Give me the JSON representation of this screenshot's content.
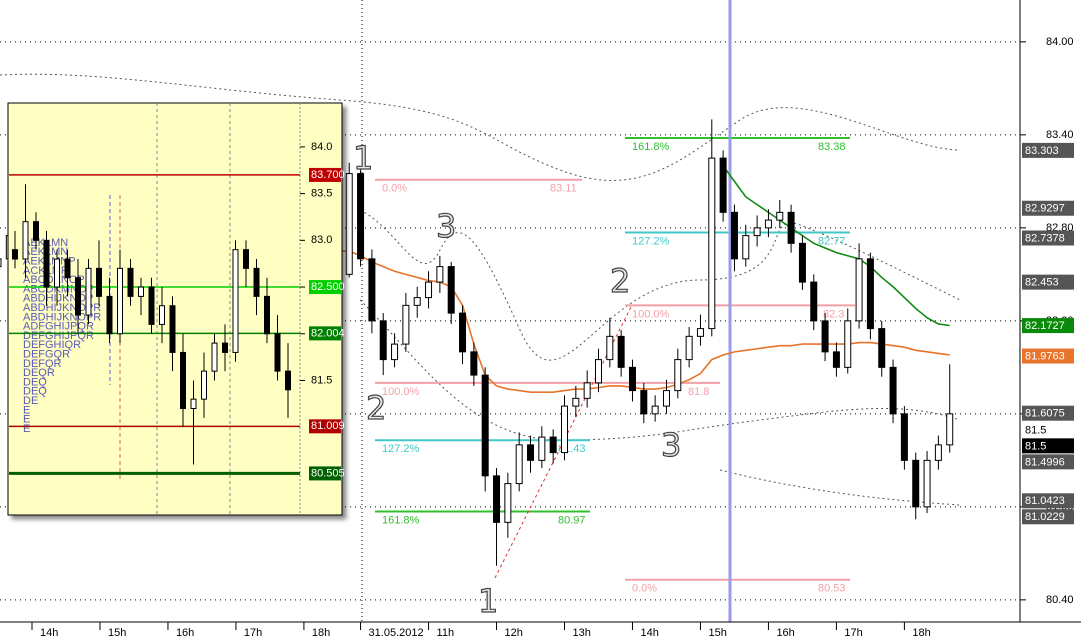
{
  "chart_data": [
    {
      "type": "candlestick",
      "categories": [
        null,
        null,
        null,
        "14h",
        null,
        null,
        null,
        null,
        null,
        "15h",
        null,
        null,
        null,
        null,
        null,
        "16h",
        null,
        null,
        null,
        null,
        null,
        "17h",
        null,
        null,
        null,
        null,
        null,
        "18h",
        null,
        null,
        null,
        null,
        "31.05.2012",
        null,
        null,
        null,
        null,
        null,
        "11h",
        null,
        null,
        null,
        null,
        null,
        "12h",
        null,
        null,
        null,
        null,
        null,
        "13h",
        null,
        null,
        null,
        null,
        null,
        "14h",
        null,
        null,
        null,
        null,
        null,
        "15h",
        null,
        null,
        null,
        null,
        null,
        "16h",
        null,
        null,
        null,
        null,
        null,
        "17h",
        null,
        null,
        null,
        null,
        null,
        "18h",
        null,
        null,
        null,
        null
      ],
      "candles": [
        [
          82.55,
          82.68,
          82.48,
          82.6
        ],
        [
          82.6,
          82.82,
          82.55,
          82.75
        ],
        [
          82.75,
          82.8,
          82.62,
          82.7
        ],
        [
          82.7,
          82.92,
          82.66,
          82.85
        ],
        [
          82.85,
          82.9,
          82.72,
          82.8
        ],
        [
          82.8,
          82.84,
          82.58,
          82.65
        ],
        [
          82.65,
          82.78,
          82.6,
          82.7
        ],
        [
          82.7,
          82.74,
          82.48,
          82.55
        ],
        [
          82.55,
          82.68,
          82.5,
          82.6
        ],
        [
          82.6,
          82.82,
          82.56,
          82.75
        ],
        [
          82.75,
          82.98,
          82.7,
          82.9
        ],
        [
          82.9,
          82.94,
          82.74,
          82.8
        ],
        [
          82.8,
          82.85,
          82.64,
          82.7
        ],
        [
          82.7,
          82.76,
          82.52,
          82.6
        ],
        [
          82.6,
          82.64,
          82.38,
          82.45
        ],
        [
          82.45,
          82.62,
          82.4,
          82.55
        ],
        [
          82.55,
          82.78,
          82.5,
          82.7
        ],
        [
          82.7,
          82.75,
          82.58,
          82.65
        ],
        [
          82.65,
          82.88,
          82.6,
          82.8
        ],
        [
          82.8,
          83.05,
          82.75,
          82.95
        ],
        [
          82.95,
          83.0,
          82.78,
          82.85
        ],
        [
          82.85,
          82.9,
          82.62,
          82.7
        ],
        [
          82.7,
          82.75,
          82.52,
          82.6
        ],
        [
          82.6,
          82.66,
          82.42,
          82.5
        ],
        [
          82.5,
          82.62,
          82.45,
          82.55
        ],
        [
          82.55,
          82.72,
          82.5,
          82.65
        ],
        [
          82.65,
          82.7,
          82.52,
          82.6
        ],
        [
          82.6,
          82.64,
          82.38,
          82.45
        ],
        [
          82.45,
          82.5,
          82.32,
          82.4
        ],
        [
          82.4,
          82.52,
          82.35,
          82.45
        ],
        [
          82.45,
          82.58,
          82.4,
          82.5
        ],
        [
          82.5,
          83.22,
          82.48,
          83.15
        ],
        [
          83.15,
          83.18,
          82.55,
          82.6
        ],
        [
          82.6,
          82.66,
          82.12,
          82.2
        ],
        [
          82.2,
          82.25,
          81.85,
          81.95
        ],
        [
          81.95,
          82.12,
          81.9,
          82.05
        ],
        [
          82.05,
          82.38,
          82.0,
          82.3
        ],
        [
          82.3,
          82.42,
          82.22,
          82.35
        ],
        [
          82.35,
          82.52,
          82.28,
          82.45
        ],
        [
          82.45,
          82.62,
          82.38,
          82.55
        ],
        [
          82.55,
          82.58,
          82.18,
          82.25
        ],
        [
          82.25,
          82.3,
          81.92,
          82.0
        ],
        [
          82.0,
          82.06,
          81.78,
          81.85
        ],
        [
          81.85,
          81.9,
          81.1,
          81.2
        ],
        [
          81.2,
          81.25,
          80.62,
          80.9
        ],
        [
          80.9,
          81.22,
          80.8,
          81.15
        ],
        [
          81.15,
          81.48,
          81.1,
          81.4
        ],
        [
          81.4,
          81.46,
          81.22,
          81.3
        ],
        [
          81.3,
          81.52,
          81.25,
          81.45
        ],
        [
          81.45,
          81.5,
          81.28,
          81.35
        ],
        [
          81.35,
          81.72,
          81.3,
          81.65
        ],
        [
          81.65,
          81.78,
          81.58,
          81.7
        ],
        [
          81.7,
          81.88,
          81.64,
          81.8
        ],
        [
          81.8,
          82.02,
          81.74,
          81.95
        ],
        [
          81.95,
          82.22,
          81.9,
          82.1
        ],
        [
          82.1,
          82.14,
          81.84,
          81.9
        ],
        [
          81.9,
          81.95,
          81.68,
          81.75
        ],
        [
          81.75,
          81.8,
          81.54,
          81.6
        ],
        [
          81.6,
          81.72,
          81.55,
          81.65
        ],
        [
          81.65,
          81.82,
          81.6,
          81.75
        ],
        [
          81.75,
          82.02,
          81.7,
          81.95
        ],
        [
          81.95,
          82.16,
          81.9,
          82.1
        ],
        [
          82.1,
          82.24,
          82.04,
          82.15
        ],
        [
          82.15,
          83.5,
          82.1,
          83.25
        ],
        [
          83.25,
          83.3,
          82.84,
          82.9
        ],
        [
          82.9,
          82.95,
          82.52,
          82.6
        ],
        [
          82.6,
          82.82,
          82.55,
          82.75
        ],
        [
          82.75,
          82.88,
          82.68,
          82.8
        ],
        [
          82.8,
          82.92,
          82.74,
          82.85
        ],
        [
          82.85,
          82.98,
          82.8,
          82.9
        ],
        [
          82.9,
          82.95,
          82.64,
          82.7
        ],
        [
          82.7,
          82.75,
          82.4,
          82.45
        ],
        [
          82.45,
          82.5,
          82.14,
          82.2
        ],
        [
          82.2,
          82.25,
          81.94,
          82.0
        ],
        [
          82.0,
          82.06,
          81.84,
          81.9
        ],
        [
          81.9,
          82.28,
          81.86,
          82.2
        ],
        [
          82.2,
          82.7,
          82.15,
          82.6
        ],
        [
          82.6,
          82.64,
          82.08,
          82.15
        ],
        [
          82.15,
          82.2,
          81.84,
          81.9
        ],
        [
          81.9,
          81.95,
          81.54,
          81.6
        ],
        [
          81.6,
          81.65,
          81.24,
          81.3
        ],
        [
          81.3,
          81.35,
          80.92,
          81.0
        ],
        [
          81.0,
          81.36,
          80.96,
          81.3
        ],
        [
          81.3,
          81.46,
          81.24,
          81.4
        ],
        [
          81.4,
          81.92,
          81.35,
          81.6
        ]
      ],
      "up_color": "#ffffff",
      "down_color": "#000000",
      "series": [
        {
          "color": "#e8742c",
          "values": [
            null,
            null,
            null,
            null,
            null,
            null,
            null,
            null,
            null,
            null,
            null,
            null,
            null,
            null,
            null,
            null,
            null,
            null,
            null,
            null,
            null,
            null,
            null,
            null,
            null,
            null,
            null,
            null,
            null,
            null,
            82.65,
            82.65,
            82.62,
            82.58,
            82.55,
            82.52,
            82.5,
            82.48,
            82.46,
            82.45,
            82.42,
            82.3,
            82.05,
            81.85,
            81.78,
            81.76,
            81.75,
            81.74,
            81.74,
            81.74,
            81.75,
            81.76,
            81.76,
            81.77,
            81.78,
            81.78,
            81.77,
            81.76,
            81.76,
            81.77,
            81.79,
            81.82,
            81.86,
            81.95,
            81.98,
            82.0,
            82.01,
            82.02,
            82.03,
            82.04,
            82.04,
            82.05,
            82.05,
            82.05,
            82.05,
            82.05,
            82.06,
            82.06,
            82.05,
            82.04,
            82.03,
            82.01,
            82.0,
            81.99,
            81.98
          ]
        },
        {
          "color": "#108a10",
          "values": [
            null,
            null,
            null,
            null,
            null,
            null,
            null,
            null,
            null,
            null,
            null,
            null,
            null,
            null,
            null,
            null,
            null,
            null,
            null,
            null,
            null,
            null,
            null,
            null,
            null,
            null,
            null,
            null,
            null,
            null,
            null,
            null,
            null,
            null,
            null,
            null,
            null,
            null,
            null,
            null,
            null,
            null,
            null,
            null,
            null,
            null,
            null,
            null,
            null,
            null,
            null,
            null,
            null,
            null,
            null,
            null,
            null,
            null,
            null,
            null,
            null,
            null,
            null,
            null,
            83.2,
            83.1,
            83.0,
            82.95,
            82.9,
            82.85,
            82.8,
            82.75,
            82.7,
            82.67,
            82.64,
            82.62,
            82.6,
            82.55,
            82.48,
            82.42,
            82.35,
            82.28,
            82.22,
            82.18,
            82.17
          ]
        }
      ],
      "ylim": [
        80.27,
        84.27
      ],
      "yticks": [
        {
          "value": 80.4,
          "label": "80.40"
        },
        {
          "value": 81,
          "label": "81.00"
        },
        {
          "value": 81.6,
          "label": "81.60"
        },
        {
          "value": 82.2,
          "label": "82.20"
        },
        {
          "value": 82.8,
          "label": "82.80"
        },
        {
          "value": 83.4,
          "label": "83.40"
        },
        {
          "value": 84,
          "label": "84.00"
        }
      ],
      "grid": true,
      "fib_levels": [
        {
          "label": "0.0%",
          "value": 83.11,
          "color": "#f2a0a8"
        },
        {
          "label": "100.0%",
          "value": 81.8,
          "color": "#f2a0a8"
        },
        {
          "label": "127.2%",
          "value": 81.43,
          "color": "#40c8c8"
        },
        {
          "label": "161.8%",
          "value": 80.97,
          "color": "#30c030"
        },
        {
          "label": "161.8%",
          "value": 83.38,
          "color": "#30c030"
        },
        {
          "label": "127.2%",
          "value": 82.77,
          "color": "#40c8c8"
        },
        {
          "label": "100.0%",
          "value": 82.3,
          "color": "#f2a0a8"
        },
        {
          "label": "0.0%",
          "value": 80.53,
          "color": "#f2a0a8"
        }
      ],
      "waves": [
        "1",
        "2",
        "3",
        "2",
        "3",
        "1"
      ],
      "price_labels": [
        {
          "value": 83.303,
          "color": "#555555",
          "text_color": "#ffffff"
        },
        {
          "value": 82.9297,
          "color": "#555555",
          "text_color": "#ffffff"
        },
        {
          "value": 82.7378,
          "color": "#555555",
          "text_color": "#ffffff"
        },
        {
          "value": 82.453,
          "color": "#555555",
          "text_color": "#ffffff"
        },
        {
          "value": 82.1727,
          "color": "#0a8a0a",
          "text_color": "#ffffff"
        },
        {
          "value": 81.9763,
          "color": "#e8742c",
          "text_color": "#ffffff"
        },
        {
          "value": 81.6075,
          "color": "#555555",
          "text_color": "#ffffff"
        },
        {
          "value": 81.5,
          "color": "#ffffff",
          "text_color": "#000000"
        },
        {
          "value": 81.5,
          "color": "#000000",
          "text_color": "#ffffff"
        },
        {
          "value": 81.4996,
          "color": "#555555",
          "text_color": "#ffffff"
        },
        {
          "value": 81.0423,
          "color": "#555555",
          "text_color": "#ffffff"
        },
        {
          "value": 81.0229,
          "color": "#555555",
          "text_color": "#ffffff"
        }
      ]
    },
    {
      "type": "candlestick",
      "candles": [
        [
          82.9,
          83.1,
          82.7,
          82.8
        ],
        [
          82.8,
          83.6,
          82.6,
          83.2
        ],
        [
          83.2,
          83.3,
          82.9,
          83.0
        ],
        [
          83.0,
          83.1,
          82.3,
          82.5
        ],
        [
          82.5,
          82.9,
          82.3,
          82.8
        ],
        [
          82.8,
          82.9,
          82.4,
          82.6
        ],
        [
          82.6,
          82.8,
          82.0,
          82.2
        ],
        [
          82.2,
          82.8,
          82.1,
          82.7
        ],
        [
          82.7,
          83.0,
          82.3,
          82.4
        ],
        [
          82.4,
          82.6,
          81.9,
          82.0
        ],
        [
          82.0,
          82.9,
          81.9,
          82.7
        ],
        [
          82.7,
          82.8,
          82.3,
          82.4
        ],
        [
          82.4,
          82.6,
          82.2,
          82.5
        ],
        [
          82.5,
          82.6,
          82.0,
          82.1
        ],
        [
          82.1,
          82.5,
          81.9,
          82.3
        ],
        [
          82.3,
          82.4,
          81.6,
          81.8
        ],
        [
          81.8,
          82.0,
          81.0,
          81.2
        ],
        [
          81.2,
          81.5,
          80.6,
          81.3
        ],
        [
          81.3,
          81.8,
          81.1,
          81.6
        ],
        [
          81.6,
          82.0,
          81.5,
          81.9
        ],
        [
          81.9,
          82.1,
          81.6,
          81.8
        ],
        [
          81.8,
          83.0,
          81.7,
          82.9
        ],
        [
          82.9,
          83.0,
          82.5,
          82.7
        ],
        [
          82.7,
          82.8,
          82.2,
          82.4
        ],
        [
          82.4,
          82.6,
          81.9,
          82.0
        ],
        [
          82.0,
          82.2,
          81.5,
          81.6
        ],
        [
          81.6,
          81.9,
          81.1,
          81.4
        ]
      ],
      "up_color": "#ffffff",
      "down_color": "#000000",
      "ylim": [
        80.06,
        84.47
      ],
      "yticks": [
        {
          "value": 84,
          "label": "84.0"
        },
        83.5,
        {
          "value": 83,
          "label": "83.0"
        },
        82.5,
        {
          "value": 82,
          "label": "82.0"
        },
        81.5
      ],
      "levels": [
        {
          "value": 83.7,
          "label": "83.700",
          "color": "#c00000"
        },
        {
          "value": 82.5,
          "label": "82.500",
          "color": "#00d000"
        },
        {
          "value": 82.004,
          "color": "#008000"
        },
        {
          "value": 81.009,
          "color": "#b00000"
        },
        {
          "value": 80.505,
          "color": "#006000"
        }
      ],
      "profile": [
        "AEKLMN",
        "AEKLMN",
        "AEKLMNP",
        "ACKLMP",
        "ABCDKNOP",
        "ABCDKMNOP",
        "ABDHIJKNOP",
        "ABDHIJKNOPR",
        "ABDHIJKNOPR",
        "ADFGHIJPQR",
        "DEFGHIJPQR",
        "DEFGHIQR",
        "DEFGQR",
        "DEFQR",
        "DEQR",
        "DEQ",
        "DEQ",
        "DE",
        "E",
        "E",
        "E"
      ]
    }
  ]
}
